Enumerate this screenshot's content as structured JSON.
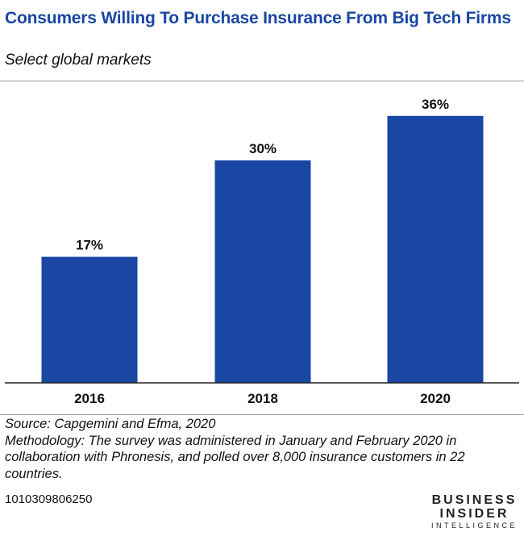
{
  "header": {
    "title": "Consumers Willing To Purchase Insurance From Big Tech Firms",
    "subtitle": "Select global markets"
  },
  "chart_data": {
    "type": "bar",
    "title": "Consumers Willing To Purchase Insurance From Big Tech Firms",
    "subtitle": "Select global markets",
    "categories": [
      "2016",
      "2018",
      "2020"
    ],
    "values": [
      17,
      30,
      36
    ],
    "value_labels": [
      "17%",
      "30%",
      "36%"
    ],
    "unit": "%",
    "xlabel": "",
    "ylabel": "",
    "ylim": [
      0,
      40
    ],
    "grid": false,
    "bar_color": "#1a47a4"
  },
  "footer": {
    "source": "Source: Capgemini and Efma, 2020",
    "methodology": "Methodology: The survey was administered in January and February 2020 in collaboration with Phronesis, and polled over 8,000 insurance customers in 22 countries.",
    "chart_id": "1010309806250",
    "logo_line1": "BUSINESS",
    "logo_line2": "INSIDER",
    "logo_line3": "INTELLIGENCE"
  }
}
